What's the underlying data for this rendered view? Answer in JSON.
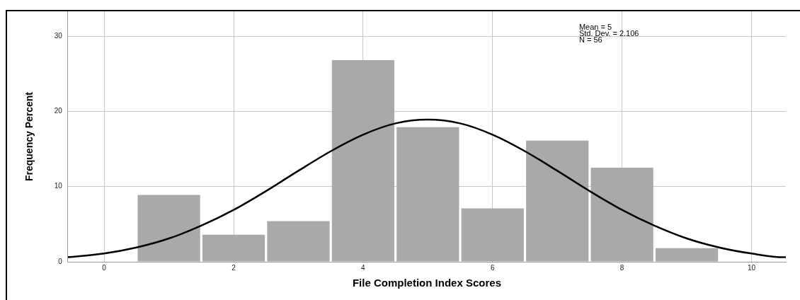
{
  "chart_data": {
    "type": "histogram",
    "xlabel": "File Completion Index Scores",
    "ylabel": "Frequency Percent",
    "bins": [
      0.5,
      1.5,
      2.5,
      3.5,
      4.5,
      5.5,
      6.5,
      7.5,
      8.5,
      9.5
    ],
    "values": [
      8.9,
      3.6,
      5.4,
      26.8,
      17.9,
      7.1,
      16.1,
      12.5,
      1.8
    ],
    "color": "#a9a9a9",
    "series": [
      {
        "type": "line",
        "color": "#000000",
        "x": [
          -0.56,
          0,
          0.5,
          1,
          1.5,
          2,
          2.5,
          3,
          3.5,
          4,
          4.5,
          5,
          5.5,
          6,
          6.5,
          7,
          7.5,
          8,
          8.5,
          9,
          9.5,
          10,
          10.5,
          10.53
        ],
        "values": [
          0.6,
          1.1,
          1.9,
          3.1,
          4.8,
          6.9,
          9.4,
          12.1,
          14.7,
          16.9,
          18.4,
          18.9,
          18.4,
          16.9,
          14.7,
          12.1,
          9.4,
          6.9,
          4.8,
          3.1,
          1.9,
          1.1,
          0.6,
          0.6
        ]
      }
    ],
    "annotations": [
      "Mean = 5",
      "Std. Dev. = 2.106",
      "N = 56"
    ],
    "xlim": [
      -0.56,
      10.53
    ],
    "xticks": [
      0,
      2,
      4,
      6,
      8,
      10
    ],
    "ylim": [
      0,
      33.3
    ],
    "yticks": [
      0,
      10,
      20,
      30
    ],
    "grid": true,
    "marker": "none",
    "legend": false
  }
}
